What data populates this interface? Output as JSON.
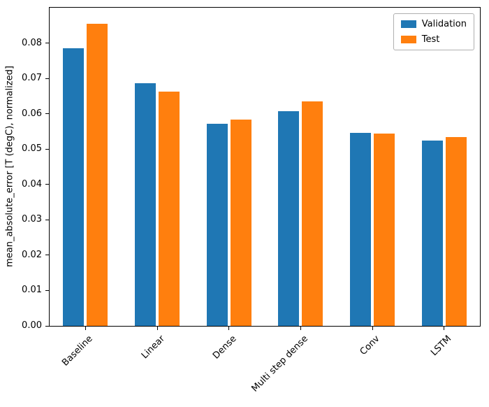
{
  "chart_data": {
    "type": "bar",
    "categories": [
      "Baseline",
      "Linear",
      "Dense",
      "Multi step dense",
      "Conv",
      "LSTM"
    ],
    "series": [
      {
        "name": "Validation",
        "color": "#1f77b4",
        "values": [
          0.0785,
          0.0687,
          0.0572,
          0.0607,
          0.0545,
          0.0524
        ]
      },
      {
        "name": "Test",
        "color": "#ff7f0e",
        "values": [
          0.0855,
          0.0663,
          0.0583,
          0.0634,
          0.0543,
          0.0534
        ]
      }
    ],
    "title": "",
    "xlabel": "",
    "ylabel": "mean_absolute_error [T (degC), normalized]",
    "ylim": [
      0,
      0.09
    ],
    "yticks": [
      0,
      0.01,
      0.02,
      0.03,
      0.04,
      0.05,
      0.06,
      0.07,
      0.08
    ],
    "ytick_labels": [
      "0.00",
      "0.01",
      "0.02",
      "0.03",
      "0.04",
      "0.05",
      "0.06",
      "0.07",
      "0.08"
    ],
    "legend_position": "upper right",
    "grid": false
  }
}
